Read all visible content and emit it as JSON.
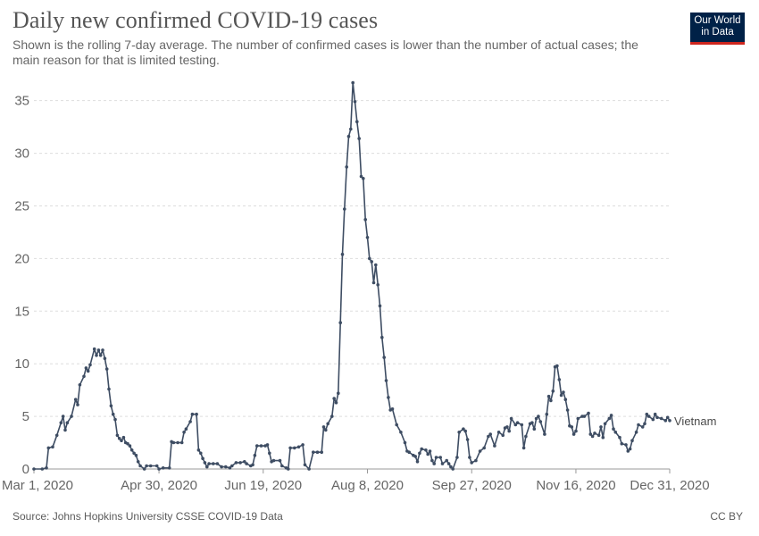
{
  "header": {
    "title": "Daily new confirmed COVID-19 cases",
    "subtitle": "Shown is the rolling 7-day average. The number of confirmed cases is lower than the number of actual cases; the main reason for that is limited testing.",
    "logo_line1": "Our World",
    "logo_line2": "in Data"
  },
  "footer": {
    "source": "Source: Johns Hopkins University CSSE COVID-19 Data",
    "license": "CC BY"
  },
  "colors": {
    "series": "#3e4d63",
    "grid": "#dddddd",
    "logo_bg": "#002147",
    "logo_accent": "#ce261e"
  },
  "chart_data": {
    "type": "line",
    "title": "Daily new confirmed COVID-19 cases",
    "x_ticks": [
      "Mar 1, 2020",
      "Apr 30, 2020",
      "Jun 19, 2020",
      "Aug 8, 2020",
      "Sep 27, 2020",
      "Nov 16, 2020",
      "Dec 31, 2020"
    ],
    "x_range": [
      "2020-03-01",
      "2020-12-31"
    ],
    "y_ticks": [
      0,
      5,
      10,
      15,
      20,
      25,
      30,
      35
    ],
    "ylim": [
      0,
      36.5
    ],
    "grid": "horizontal dashed",
    "legend": "inline label at line end",
    "series": [
      {
        "name": "Vietnam",
        "points": [
          [
            "2020-03-01",
            0
          ],
          [
            "2020-03-05",
            0
          ],
          [
            "2020-03-07",
            0.1
          ],
          [
            "2020-03-08",
            2.0
          ],
          [
            "2020-03-10",
            2.1
          ],
          [
            "2020-03-12",
            3.2
          ],
          [
            "2020-03-14",
            4.4
          ],
          [
            "2020-03-15",
            5.0
          ],
          [
            "2020-03-16",
            3.7
          ],
          [
            "2020-03-17",
            4.4
          ],
          [
            "2020-03-19",
            5.0
          ],
          [
            "2020-03-21",
            6.6
          ],
          [
            "2020-03-22",
            6.1
          ],
          [
            "2020-03-23",
            8.0
          ],
          [
            "2020-03-25",
            8.8
          ],
          [
            "2020-03-26",
            9.6
          ],
          [
            "2020-03-27",
            9.3
          ],
          [
            "2020-03-28",
            9.9
          ],
          [
            "2020-03-30",
            11.4
          ],
          [
            "2020-03-31",
            10.8
          ],
          [
            "2020-04-01",
            11.3
          ],
          [
            "2020-04-02",
            10.8
          ],
          [
            "2020-04-03",
            11.3
          ],
          [
            "2020-04-04",
            10.5
          ],
          [
            "2020-04-05",
            9.5
          ],
          [
            "2020-04-06",
            7.6
          ],
          [
            "2020-04-07",
            6.0
          ],
          [
            "2020-04-08",
            5.2
          ],
          [
            "2020-04-09",
            4.7
          ],
          [
            "2020-04-10",
            3.2
          ],
          [
            "2020-04-11",
            2.9
          ],
          [
            "2020-04-12",
            2.7
          ],
          [
            "2020-04-13",
            3.0
          ],
          [
            "2020-04-14",
            2.5
          ],
          [
            "2020-04-15",
            2.4
          ],
          [
            "2020-04-16",
            2.2
          ],
          [
            "2020-04-17",
            1.8
          ],
          [
            "2020-04-18",
            1.5
          ],
          [
            "2020-04-19",
            1.3
          ],
          [
            "2020-04-20",
            0.7
          ],
          [
            "2020-04-21",
            0.3
          ],
          [
            "2020-04-23",
            0.0
          ],
          [
            "2020-04-24",
            0.3
          ],
          [
            "2020-04-26",
            0.3
          ],
          [
            "2020-04-29",
            0.3
          ],
          [
            "2020-04-30",
            0.0
          ],
          [
            "2020-05-02",
            0.1
          ],
          [
            "2020-05-05",
            0.1
          ],
          [
            "2020-05-06",
            2.6
          ],
          [
            "2020-05-07",
            2.5
          ],
          [
            "2020-05-09",
            2.5
          ],
          [
            "2020-05-11",
            2.5
          ],
          [
            "2020-05-12",
            3.5
          ],
          [
            "2020-05-13",
            3.8
          ],
          [
            "2020-05-15",
            4.5
          ],
          [
            "2020-05-16",
            5.2
          ],
          [
            "2020-05-18",
            5.2
          ],
          [
            "2020-05-19",
            1.8
          ],
          [
            "2020-05-20",
            1.5
          ],
          [
            "2020-05-21",
            1.0
          ],
          [
            "2020-05-22",
            0.6
          ],
          [
            "2020-05-23",
            0.2
          ],
          [
            "2020-05-24",
            0.5
          ],
          [
            "2020-05-26",
            0.5
          ],
          [
            "2020-05-28",
            0.5
          ],
          [
            "2020-05-30",
            0.2
          ],
          [
            "2020-06-01",
            0.2
          ],
          [
            "2020-06-03",
            0.1
          ],
          [
            "2020-06-04",
            0.3
          ],
          [
            "2020-06-06",
            0.6
          ],
          [
            "2020-06-08",
            0.6
          ],
          [
            "2020-06-10",
            0.7
          ],
          [
            "2020-06-11",
            0.5
          ],
          [
            "2020-06-13",
            0.3
          ],
          [
            "2020-06-14",
            0.4
          ],
          [
            "2020-06-15",
            1.3
          ],
          [
            "2020-06-16",
            2.2
          ],
          [
            "2020-06-18",
            2.2
          ],
          [
            "2020-06-20",
            2.2
          ],
          [
            "2020-06-21",
            2.3
          ],
          [
            "2020-06-22",
            1.5
          ],
          [
            "2020-06-23",
            0.7
          ],
          [
            "2020-06-24",
            0.8
          ],
          [
            "2020-06-27",
            0.8
          ],
          [
            "2020-06-28",
            0.3
          ],
          [
            "2020-06-30",
            0.1
          ],
          [
            "2020-07-01",
            0.0
          ],
          [
            "2020-07-02",
            2.0
          ],
          [
            "2020-07-04",
            2.0
          ],
          [
            "2020-07-06",
            2.1
          ],
          [
            "2020-07-08",
            2.3
          ],
          [
            "2020-07-09",
            0.4
          ],
          [
            "2020-07-11",
            0.0
          ],
          [
            "2020-07-13",
            1.6
          ],
          [
            "2020-07-15",
            1.6
          ],
          [
            "2020-07-17",
            1.6
          ],
          [
            "2020-07-18",
            4.0
          ],
          [
            "2020-07-19",
            3.7
          ],
          [
            "2020-07-20",
            4.3
          ],
          [
            "2020-07-22",
            5.0
          ],
          [
            "2020-07-23",
            6.7
          ],
          [
            "2020-07-24",
            6.3
          ],
          [
            "2020-07-25",
            7.2
          ],
          [
            "2020-07-26",
            13.9
          ],
          [
            "2020-07-27",
            20.4
          ],
          [
            "2020-07-28",
            24.7
          ],
          [
            "2020-07-29",
            28.7
          ],
          [
            "2020-07-30",
            31.6
          ],
          [
            "2020-07-31",
            32.3
          ],
          [
            "2020-08-01",
            36.7
          ],
          [
            "2020-08-02",
            34.9
          ],
          [
            "2020-08-03",
            33.0
          ],
          [
            "2020-08-04",
            31.4
          ],
          [
            "2020-08-05",
            27.8
          ],
          [
            "2020-08-06",
            27.6
          ],
          [
            "2020-08-07",
            23.7
          ],
          [
            "2020-08-08",
            22.0
          ],
          [
            "2020-08-09",
            20.0
          ],
          [
            "2020-08-10",
            19.7
          ],
          [
            "2020-08-11",
            17.7
          ],
          [
            "2020-08-12",
            19.4
          ],
          [
            "2020-08-13",
            17.5
          ],
          [
            "2020-08-14",
            15.5
          ],
          [
            "2020-08-15",
            12.5
          ],
          [
            "2020-08-16",
            10.6
          ],
          [
            "2020-08-17",
            8.4
          ],
          [
            "2020-08-18",
            6.8
          ],
          [
            "2020-08-19",
            5.6
          ],
          [
            "2020-08-20",
            5.7
          ],
          [
            "2020-08-22",
            4.2
          ],
          [
            "2020-08-24",
            3.5
          ],
          [
            "2020-08-26",
            2.5
          ],
          [
            "2020-08-27",
            1.7
          ],
          [
            "2020-08-28",
            1.6
          ],
          [
            "2020-08-30",
            1.3
          ],
          [
            "2020-08-31",
            1.2
          ],
          [
            "2020-09-01",
            0.7
          ],
          [
            "2020-09-02",
            1.5
          ],
          [
            "2020-09-03",
            1.9
          ],
          [
            "2020-09-05",
            1.8
          ],
          [
            "2020-09-06",
            1.4
          ],
          [
            "2020-09-07",
            1.7
          ],
          [
            "2020-09-08",
            0.8
          ],
          [
            "2020-09-09",
            0.5
          ],
          [
            "2020-09-10",
            1.1
          ],
          [
            "2020-09-12",
            1.1
          ],
          [
            "2020-09-13",
            0.5
          ],
          [
            "2020-09-15",
            0.8
          ],
          [
            "2020-09-16",
            0.5
          ],
          [
            "2020-09-17",
            0.2
          ],
          [
            "2020-09-18",
            0.0
          ],
          [
            "2020-09-20",
            1.1
          ],
          [
            "2020-09-21",
            3.5
          ],
          [
            "2020-09-23",
            3.8
          ],
          [
            "2020-09-24",
            3.6
          ],
          [
            "2020-09-25",
            2.8
          ],
          [
            "2020-09-26",
            1.1
          ],
          [
            "2020-09-27",
            0.6
          ],
          [
            "2020-09-29",
            0.8
          ],
          [
            "2020-10-01",
            1.7
          ],
          [
            "2020-10-03",
            2.0
          ],
          [
            "2020-10-05",
            3.1
          ],
          [
            "2020-10-06",
            3.3
          ],
          [
            "2020-10-08",
            2.2
          ],
          [
            "2020-10-10",
            3.5
          ],
          [
            "2020-10-12",
            3.2
          ],
          [
            "2020-10-13",
            3.9
          ],
          [
            "2020-10-14",
            4.0
          ],
          [
            "2020-10-15",
            3.6
          ],
          [
            "2020-10-16",
            4.8
          ],
          [
            "2020-10-18",
            4.2
          ],
          [
            "2020-10-19",
            4.4
          ],
          [
            "2020-10-21",
            4.2
          ],
          [
            "2020-10-22",
            2.0
          ],
          [
            "2020-10-23",
            3.1
          ],
          [
            "2020-10-25",
            4.3
          ],
          [
            "2020-10-26",
            4.4
          ],
          [
            "2020-10-27",
            3.8
          ],
          [
            "2020-10-28",
            4.8
          ],
          [
            "2020-10-29",
            5.0
          ],
          [
            "2020-10-30",
            4.5
          ],
          [
            "2020-11-01",
            3.3
          ],
          [
            "2020-11-02",
            5.2
          ],
          [
            "2020-11-03",
            6.9
          ],
          [
            "2020-11-04",
            6.5
          ],
          [
            "2020-11-05",
            7.4
          ],
          [
            "2020-11-06",
            9.7
          ],
          [
            "2020-11-07",
            9.8
          ],
          [
            "2020-11-08",
            8.5
          ],
          [
            "2020-11-09",
            7.0
          ],
          [
            "2020-11-10",
            7.3
          ],
          [
            "2020-11-11",
            6.6
          ],
          [
            "2020-11-12",
            5.6
          ],
          [
            "2020-11-13",
            4.1
          ],
          [
            "2020-11-14",
            4.0
          ],
          [
            "2020-11-15",
            3.3
          ],
          [
            "2020-11-16",
            3.6
          ],
          [
            "2020-11-17",
            4.8
          ],
          [
            "2020-11-19",
            5.0
          ],
          [
            "2020-11-20",
            5.0
          ],
          [
            "2020-11-22",
            5.3
          ],
          [
            "2020-11-23",
            3.3
          ],
          [
            "2020-11-24",
            3.1
          ],
          [
            "2020-11-25",
            3.4
          ],
          [
            "2020-11-27",
            3.2
          ],
          [
            "2020-11-28",
            4.0
          ],
          [
            "2020-11-29",
            3.0
          ],
          [
            "2020-11-30",
            4.3
          ],
          [
            "2020-12-02",
            4.8
          ],
          [
            "2020-12-03",
            5.1
          ],
          [
            "2020-12-04",
            3.8
          ],
          [
            "2020-12-05",
            3.5
          ],
          [
            "2020-12-07",
            3.0
          ],
          [
            "2020-12-08",
            2.4
          ],
          [
            "2020-12-10",
            2.3
          ],
          [
            "2020-12-11",
            1.7
          ],
          [
            "2020-12-12",
            1.9
          ],
          [
            "2020-12-13",
            2.7
          ],
          [
            "2020-12-15",
            3.5
          ],
          [
            "2020-12-16",
            4.2
          ],
          [
            "2020-12-18",
            4.0
          ],
          [
            "2020-12-19",
            4.3
          ],
          [
            "2020-12-20",
            5.2
          ],
          [
            "2020-12-21",
            5.0
          ],
          [
            "2020-12-23",
            4.7
          ],
          [
            "2020-12-24",
            5.2
          ],
          [
            "2020-12-25",
            4.9
          ],
          [
            "2020-12-27",
            4.8
          ],
          [
            "2020-12-29",
            4.6
          ],
          [
            "2020-12-30",
            4.9
          ],
          [
            "2020-12-31",
            4.6
          ]
        ]
      }
    ]
  }
}
